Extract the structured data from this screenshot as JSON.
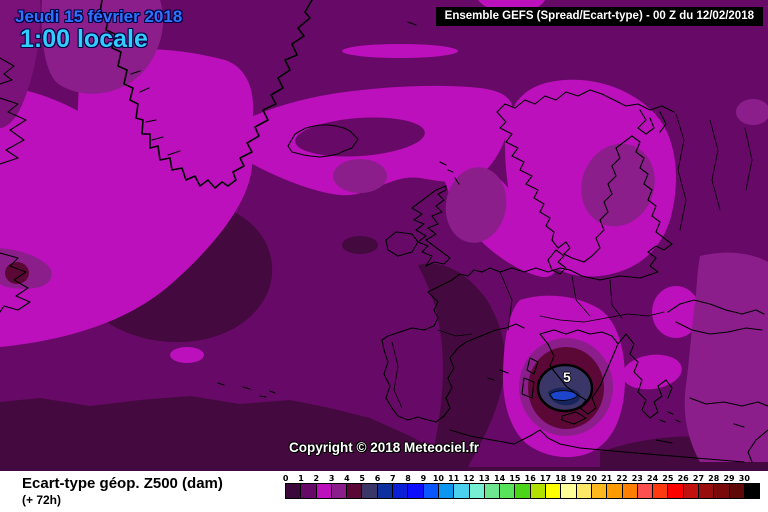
{
  "header": {
    "date_line": "Jeudi 15 février 2018",
    "time_line": "1:00 locale",
    "model_box": "Ensemble GEFS  (Spread/Ecart-type) - 00 Z du 12/02/2018",
    "colors": {
      "date_text": "#2f74ff",
      "time_text": "#33ccff"
    }
  },
  "map": {
    "copyright": "Copyright © 2018 Meteociel.fr",
    "max_label": "5",
    "region_colors": {
      "base_dark_purple": "#670a67",
      "darkest_purple": "#44093e",
      "magenta": "#bb10bb",
      "medium_purple": "#8c1e8c",
      "maroon": "#5c0836",
      "slate_blue": "#3a3768",
      "core_blue": "#1c45cc"
    }
  },
  "footer": {
    "title": "Ecart-type géop. Z500 (dam)",
    "subtitle": "(+ 72h)",
    "scale": {
      "labels": [
        "0",
        "1",
        "2",
        "3",
        "4",
        "5",
        "6",
        "7",
        "8",
        "9",
        "10",
        "11",
        "12",
        "13",
        "14",
        "15",
        "16",
        "17",
        "18",
        "19",
        "20",
        "21",
        "22",
        "23",
        "24",
        "25",
        "26",
        "27",
        "28",
        "29",
        "30"
      ],
      "colors": [
        "#3a083a",
        "#670a67",
        "#bb10bb",
        "#8c1e8c",
        "#5c0836",
        "#3a3768",
        "#0e2f9e",
        "#0b1fd6",
        "#0d0dff",
        "#0b57ff",
        "#0d96f0",
        "#4cd0f0",
        "#76f0d2",
        "#6ee690",
        "#58e35c",
        "#4bd519",
        "#b2e000",
        "#ffff00",
        "#ffff99",
        "#ffe866",
        "#ffb81e",
        "#ff9a00",
        "#ff7f00",
        "#fc4f4f",
        "#ff3a10",
        "#ff0000",
        "#c01010",
        "#990d0d",
        "#7a0a0a",
        "#5e0808",
        "#000000"
      ]
    }
  }
}
